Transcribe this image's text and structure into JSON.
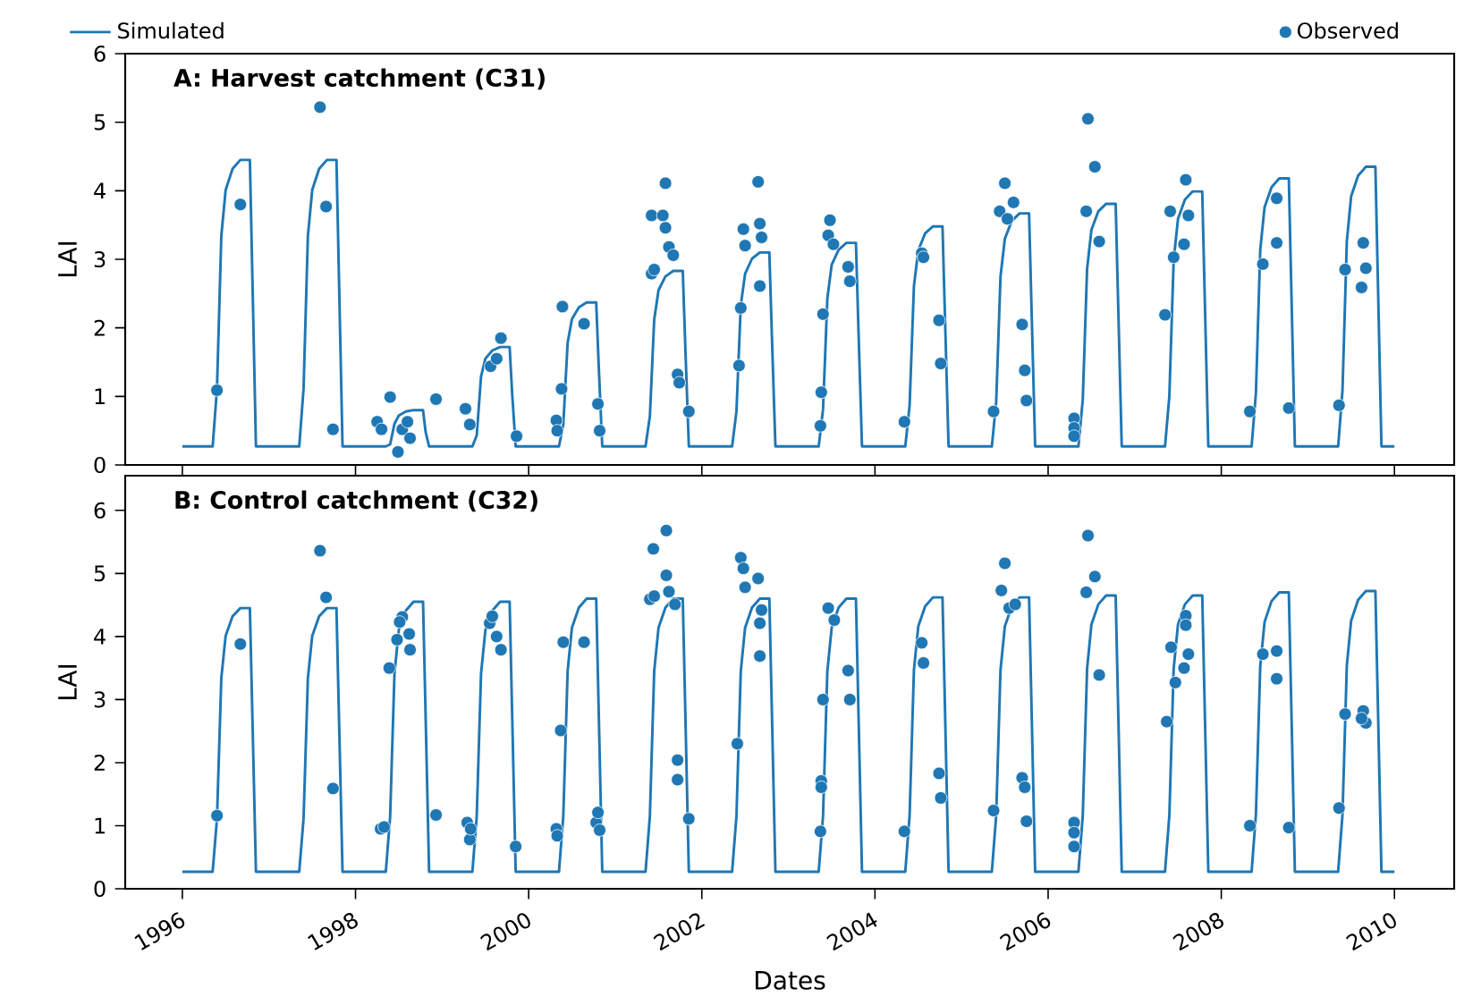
{
  "chart_data": [
    {
      "type": "line",
      "title": "A: Harvest catchment (C31)",
      "ylabel": "LAI",
      "xlim": [
        1995.34,
        2010.69
      ],
      "ylim": [
        0,
        6
      ],
      "xticks": [
        1996,
        1998,
        2000,
        2002,
        2004,
        2006,
        2008,
        2010
      ],
      "yticks": [
        0,
        1,
        2,
        3,
        4,
        5,
        6
      ],
      "tick_labels": "y",
      "legend": "top",
      "series": [
        {
          "name": "Simulated",
          "type": "line",
          "color": "#1f77b4",
          "x": [
            1996.0,
            1996.35,
            1996.4,
            1996.45,
            1996.5,
            1996.58,
            1996.67,
            1996.78,
            1996.81,
            1996.85,
            1997.35,
            1997.4,
            1997.45,
            1997.5,
            1997.58,
            1997.67,
            1997.78,
            1997.81,
            1997.85,
            1998.35,
            1998.4,
            1998.45,
            1998.5,
            1998.58,
            1998.67,
            1998.78,
            1998.81,
            1998.85,
            1999.35,
            1999.4,
            1999.45,
            1999.5,
            1999.58,
            1999.67,
            1999.78,
            1999.81,
            1999.85,
            2000.35,
            2000.4,
            2000.45,
            2000.5,
            2000.58,
            2000.67,
            2000.78,
            2000.81,
            2000.85,
            2001.35,
            2001.4,
            2001.45,
            2001.5,
            2001.58,
            2001.67,
            2001.78,
            2001.81,
            2001.85,
            2002.35,
            2002.4,
            2002.45,
            2002.5,
            2002.58,
            2002.67,
            2002.78,
            2002.81,
            2002.85,
            2003.35,
            2003.4,
            2003.45,
            2003.5,
            2003.58,
            2003.67,
            2003.78,
            2003.81,
            2003.85,
            2004.35,
            2004.4,
            2004.45,
            2004.5,
            2004.58,
            2004.67,
            2004.78,
            2004.81,
            2004.85,
            2005.35,
            2005.4,
            2005.45,
            2005.5,
            2005.58,
            2005.67,
            2005.78,
            2005.81,
            2005.85,
            2006.35,
            2006.4,
            2006.45,
            2006.5,
            2006.58,
            2006.67,
            2006.78,
            2006.81,
            2006.85,
            2007.35,
            2007.4,
            2007.45,
            2007.5,
            2007.58,
            2007.67,
            2007.78,
            2007.81,
            2007.85,
            2008.35,
            2008.4,
            2008.45,
            2008.5,
            2008.58,
            2008.67,
            2008.78,
            2008.81,
            2008.85,
            2009.35,
            2009.4,
            2009.45,
            2009.5,
            2009.58,
            2009.67,
            2009.78,
            2009.81,
            2009.85,
            2010.0
          ],
          "values": [
            0.27,
            0.27,
            1.11,
            3.34,
            4.01,
            4.32,
            4.45,
            4.45,
            2.67,
            0.27,
            0.27,
            1.11,
            3.34,
            4.01,
            4.32,
            4.45,
            4.45,
            2.67,
            0.27,
            0.27,
            0.3,
            0.6,
            0.72,
            0.78,
            0.8,
            0.8,
            0.48,
            0.27,
            0.27,
            0.43,
            1.29,
            1.55,
            1.67,
            1.72,
            1.72,
            1.03,
            0.27,
            0.27,
            0.59,
            1.78,
            2.13,
            2.3,
            2.37,
            2.37,
            1.42,
            0.27,
            0.27,
            0.71,
            2.12,
            2.55,
            2.75,
            2.83,
            2.83,
            1.7,
            0.27,
            0.27,
            0.78,
            2.33,
            2.79,
            3.01,
            3.1,
            3.1,
            1.86,
            0.27,
            0.27,
            0.81,
            2.43,
            2.92,
            3.14,
            3.24,
            3.24,
            1.94,
            0.27,
            0.27,
            0.87,
            2.61,
            3.13,
            3.38,
            3.48,
            3.48,
            2.09,
            0.27,
            0.27,
            0.92,
            2.75,
            3.3,
            3.56,
            3.67,
            3.67,
            2.2,
            0.27,
            0.27,
            0.95,
            2.86,
            3.43,
            3.7,
            3.81,
            3.81,
            2.29,
            0.27,
            0.27,
            1.0,
            2.99,
            3.59,
            3.87,
            3.99,
            3.99,
            2.39,
            0.27,
            0.27,
            1.05,
            3.14,
            3.76,
            4.05,
            4.18,
            4.18,
            2.51,
            0.27,
            0.27,
            1.09,
            3.26,
            3.92,
            4.22,
            4.35,
            4.35,
            2.61,
            0.27,
            0.27
          ]
        },
        {
          "name": "Observed",
          "type": "scatter",
          "marker": "circle",
          "color": "#1f77b4",
          "x": [
            1996.4,
            1996.67,
            1997.59,
            1997.66,
            1997.74,
            1998.25,
            1998.3,
            1998.4,
            1998.49,
            1998.54,
            1998.6,
            1998.63,
            1998.93,
            1999.27,
            1999.32,
            1999.56,
            1999.63,
            1999.68,
            1999.86,
            2000.32,
            2000.33,
            2000.38,
            2000.39,
            2000.64,
            2000.8,
            2000.82,
            2001.42,
            2001.45,
            2001.42,
            2001.55,
            2001.58,
            2001.58,
            2001.62,
            2001.67,
            2001.72,
            2001.74,
            2001.85,
            2002.43,
            2002.45,
            2002.48,
            2002.5,
            2002.65,
            2002.67,
            2002.69,
            2002.67,
            2003.37,
            2003.38,
            2003.4,
            2003.48,
            2003.46,
            2003.52,
            2003.69,
            2003.71,
            2004.34,
            2004.54,
            2004.56,
            2004.74,
            2004.76,
            2005.37,
            2005.44,
            2005.5,
            2005.53,
            2005.6,
            2005.7,
            2005.73,
            2005.75,
            2006.3,
            2006.3,
            2006.3,
            2006.44,
            2006.46,
            2006.54,
            2006.59,
            2007.35,
            2007.41,
            2007.45,
            2007.57,
            2007.62,
            2007.59,
            2008.33,
            2008.48,
            2008.64,
            2008.64,
            2008.78,
            2009.36,
            2009.43,
            2009.64,
            2009.67,
            2009.62
          ],
          "values": [
            1.09,
            3.8,
            5.22,
            3.77,
            0.52,
            0.63,
            0.52,
            0.99,
            0.19,
            0.52,
            0.63,
            0.39,
            0.96,
            0.82,
            0.59,
            1.44,
            1.55,
            1.85,
            0.42,
            0.65,
            0.5,
            1.11,
            2.31,
            2.06,
            0.89,
            0.5,
            2.79,
            2.85,
            3.64,
            3.64,
            4.11,
            3.46,
            3.18,
            3.06,
            1.32,
            1.2,
            0.78,
            1.45,
            2.29,
            3.44,
            3.2,
            4.13,
            3.52,
            3.32,
            2.61,
            0.57,
            1.06,
            2.2,
            3.57,
            3.35,
            3.22,
            2.89,
            2.68,
            0.63,
            3.09,
            3.03,
            2.11,
            1.48,
            0.78,
            3.7,
            4.11,
            3.59,
            3.83,
            2.05,
            1.38,
            0.94,
            0.68,
            0.54,
            0.42,
            3.7,
            5.05,
            4.35,
            3.26,
            2.19,
            3.7,
            3.03,
            3.22,
            3.64,
            4.16,
            0.78,
            2.93,
            3.89,
            3.24,
            0.83,
            0.87,
            2.85,
            3.24,
            2.87,
            2.59
          ]
        }
      ]
    },
    {
      "type": "line",
      "title": "B: Control catchment (C32)",
      "xlabel": "Dates",
      "ylabel": "LAI",
      "xlim": [
        1995.34,
        2010.69
      ],
      "ylim": [
        0,
        6.55
      ],
      "xticks": [
        1996,
        1998,
        2000,
        2002,
        2004,
        2006,
        2008,
        2010
      ],
      "yticks": [
        0,
        1,
        2,
        3,
        4,
        5,
        6
      ],
      "series": [
        {
          "type": "line",
          "color": "#1f77b4",
          "x": [
            1996.0,
            1996.35,
            1996.4,
            1996.45,
            1996.5,
            1996.58,
            1996.67,
            1996.78,
            1996.81,
            1996.85,
            1997.35,
            1997.4,
            1997.45,
            1997.5,
            1997.58,
            1997.67,
            1997.78,
            1997.81,
            1997.85,
            1998.35,
            1998.4,
            1998.45,
            1998.5,
            1998.58,
            1998.67,
            1998.78,
            1998.81,
            1998.85,
            1999.35,
            1999.4,
            1999.45,
            1999.5,
            1999.58,
            1999.67,
            1999.78,
            1999.81,
            1999.85,
            2000.35,
            2000.4,
            2000.45,
            2000.5,
            2000.58,
            2000.67,
            2000.78,
            2000.81,
            2000.85,
            2001.35,
            2001.4,
            2001.45,
            2001.5,
            2001.58,
            2001.67,
            2001.78,
            2001.81,
            2001.85,
            2002.35,
            2002.4,
            2002.45,
            2002.5,
            2002.58,
            2002.67,
            2002.78,
            2002.81,
            2002.85,
            2003.35,
            2003.4,
            2003.45,
            2003.5,
            2003.58,
            2003.67,
            2003.78,
            2003.81,
            2003.85,
            2004.35,
            2004.4,
            2004.45,
            2004.5,
            2004.58,
            2004.67,
            2004.78,
            2004.81,
            2004.85,
            2005.35,
            2005.4,
            2005.45,
            2005.5,
            2005.58,
            2005.67,
            2005.78,
            2005.81,
            2005.85,
            2006.35,
            2006.4,
            2006.45,
            2006.5,
            2006.58,
            2006.67,
            2006.78,
            2006.81,
            2006.85,
            2007.35,
            2007.4,
            2007.45,
            2007.5,
            2007.58,
            2007.67,
            2007.78,
            2007.81,
            2007.85,
            2008.35,
            2008.4,
            2008.45,
            2008.5,
            2008.58,
            2008.67,
            2008.78,
            2008.81,
            2008.85,
            2009.35,
            2009.4,
            2009.45,
            2009.5,
            2009.58,
            2009.67,
            2009.78,
            2009.81,
            2009.85,
            2010.0
          ],
          "values": [
            0.27,
            0.27,
            1.11,
            3.34,
            4.01,
            4.32,
            4.45,
            4.45,
            2.67,
            0.27,
            0.27,
            1.11,
            3.34,
            4.01,
            4.32,
            4.45,
            4.45,
            2.67,
            0.27,
            0.27,
            1.14,
            3.41,
            4.1,
            4.41,
            4.55,
            4.55,
            2.73,
            0.27,
            0.27,
            1.14,
            3.41,
            4.1,
            4.41,
            4.55,
            4.55,
            2.73,
            0.27,
            0.27,
            1.15,
            3.45,
            4.14,
            4.46,
            4.6,
            4.6,
            2.76,
            0.27,
            0.27,
            1.15,
            3.45,
            4.14,
            4.46,
            4.6,
            4.6,
            2.76,
            0.27,
            0.27,
            1.15,
            3.45,
            4.14,
            4.46,
            4.6,
            4.6,
            2.76,
            0.27,
            0.27,
            1.15,
            3.45,
            4.14,
            4.46,
            4.6,
            4.6,
            2.76,
            0.27,
            0.27,
            1.16,
            3.47,
            4.16,
            4.48,
            4.62,
            4.62,
            2.77,
            0.27,
            0.27,
            1.16,
            3.47,
            4.16,
            4.48,
            4.62,
            4.62,
            2.77,
            0.27,
            0.27,
            1.16,
            3.49,
            4.19,
            4.51,
            4.65,
            4.65,
            2.79,
            0.27,
            0.27,
            1.16,
            3.49,
            4.19,
            4.51,
            4.65,
            4.65,
            2.79,
            0.27,
            0.27,
            1.18,
            3.53,
            4.23,
            4.56,
            4.7,
            4.7,
            2.82,
            0.27,
            0.27,
            1.18,
            3.54,
            4.25,
            4.58,
            4.72,
            4.72,
            2.83,
            0.27,
            0.27
          ]
        },
        {
          "type": "scatter",
          "marker": "circle",
          "color": "#1f77b4",
          "x": [
            1996.4,
            1996.67,
            1997.59,
            1997.66,
            1997.74,
            1998.29,
            1998.33,
            1998.39,
            1998.48,
            1998.54,
            1998.51,
            1998.62,
            1998.63,
            1998.93,
            1999.29,
            1999.32,
            1999.33,
            1999.55,
            1999.58,
            1999.63,
            1999.68,
            1999.85,
            2000.32,
            2000.33,
            2000.37,
            2000.4,
            2000.64,
            2000.78,
            2000.8,
            2000.82,
            2001.4,
            2001.45,
            2001.44,
            2001.59,
            2001.59,
            2001.62,
            2001.69,
            2001.72,
            2001.72,
            2001.85,
            2002.41,
            2002.45,
            2002.48,
            2002.5,
            2002.65,
            2002.69,
            2002.67,
            2002.67,
            2003.37,
            2003.38,
            2003.38,
            2003.4,
            2003.46,
            2003.53,
            2003.69,
            2003.71,
            2004.34,
            2004.54,
            2004.56,
            2004.74,
            2004.76,
            2005.37,
            2005.46,
            2005.5,
            2005.55,
            2005.62,
            2005.7,
            2005.73,
            2005.75,
            2006.3,
            2006.3,
            2006.3,
            2006.44,
            2006.46,
            2006.54,
            2006.59,
            2007.37,
            2007.42,
            2007.47,
            2007.57,
            2007.62,
            2007.59,
            2007.59,
            2008.33,
            2008.48,
            2008.64,
            2008.64,
            2008.78,
            2009.36,
            2009.43,
            2009.64,
            2009.67,
            2009.62
          ],
          "values": [
            1.16,
            3.88,
            5.36,
            4.62,
            1.59,
            0.95,
            0.98,
            3.5,
            3.95,
            4.31,
            4.23,
            4.04,
            3.79,
            1.17,
            1.05,
            0.78,
            0.95,
            4.21,
            4.32,
            4.0,
            3.79,
            0.67,
            0.95,
            0.84,
            2.51,
            3.91,
            3.91,
            1.05,
            1.21,
            0.93,
            4.59,
            4.64,
            5.39,
            5.68,
            4.97,
            4.71,
            4.51,
            2.04,
            1.73,
            1.11,
            2.3,
            5.25,
            5.08,
            4.78,
            4.92,
            4.42,
            4.21,
            3.69,
            0.91,
            1.71,
            1.61,
            3.0,
            4.45,
            4.26,
            3.46,
            3.0,
            0.91,
            3.9,
            3.58,
            1.83,
            1.44,
            1.24,
            4.73,
            5.16,
            4.45,
            4.51,
            1.76,
            1.61,
            1.07,
            1.05,
            0.89,
            0.67,
            4.7,
            5.6,
            4.95,
            3.39,
            2.65,
            3.83,
            3.27,
            3.5,
            3.72,
            4.33,
            4.18,
            1.0,
            3.72,
            3.77,
            3.33,
            0.97,
            1.28,
            2.77,
            2.82,
            2.63,
            2.7
          ]
        }
      ]
    }
  ]
}
